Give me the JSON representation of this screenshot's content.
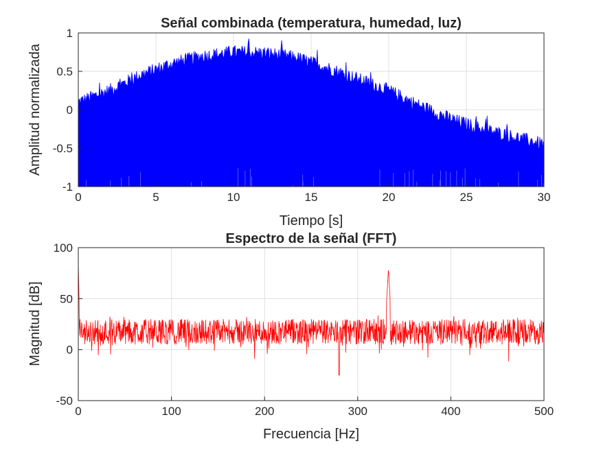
{
  "chart_data": [
    {
      "type": "area",
      "title": "Señal combinada (temperatura, humedad, luz)",
      "xlabel": "Tiempo [s]",
      "ylabel": "Amplitud normalizada",
      "xlim": [
        0,
        30
      ],
      "ylim": [
        -1,
        1
      ],
      "xticks": [
        0,
        5,
        10,
        15,
        20,
        25,
        30
      ],
      "yticks": [
        -1,
        -0.5,
        0,
        0.5,
        1
      ],
      "xtick_labels": [
        "0",
        "5",
        "10",
        "15",
        "20",
        "25",
        "30"
      ],
      "ytick_labels": [
        "-1",
        "-0.5",
        "0",
        "0.5",
        "1"
      ],
      "grid": true,
      "color": "#0000ff",
      "series": [
        {
          "x": [
            0,
            2,
            4,
            6,
            8,
            10,
            12,
            14,
            16,
            18,
            20,
            22,
            24,
            26,
            28,
            30
          ],
          "upper_envelope": [
            0.1,
            0.25,
            0.45,
            0.6,
            0.7,
            0.75,
            0.74,
            0.68,
            0.55,
            0.4,
            0.25,
            0.05,
            -0.12,
            -0.25,
            -0.35,
            -0.45
          ],
          "lower_envelope": [
            -1,
            -1,
            -1,
            -1,
            -1,
            -1,
            -1,
            -1,
            -1,
            -1,
            -1,
            -1,
            -1,
            -1,
            -1,
            -1
          ]
        }
      ]
    },
    {
      "type": "line",
      "title": "Espectro de la señal (FFT)",
      "xlabel": "Frecuencia [Hz]",
      "ylabel": "Magnitud [dB]",
      "xlim": [
        0,
        500
      ],
      "ylim": [
        -50,
        100
      ],
      "xticks": [
        0,
        100,
        200,
        300,
        400,
        500
      ],
      "yticks": [
        -50,
        0,
        50,
        100
      ],
      "xtick_labels": [
        "0",
        "100",
        "200",
        "300",
        "400",
        "500"
      ],
      "ytick_labels": [
        "-50",
        "0",
        "50",
        "100"
      ],
      "grid": true,
      "color": "#ff0000",
      "series": [
        {
          "x": [
            0,
            1,
            3,
            10,
            50,
            100,
            150,
            200,
            250,
            280,
            300,
            330,
            333,
            336,
            350,
            400,
            450,
            500
          ],
          "y": [
            85,
            40,
            25,
            18,
            18,
            18,
            18,
            18,
            18,
            -25,
            18,
            30,
            80,
            30,
            18,
            18,
            18,
            18
          ],
          "noise_band": [
            5,
            30
          ]
        }
      ]
    }
  ]
}
